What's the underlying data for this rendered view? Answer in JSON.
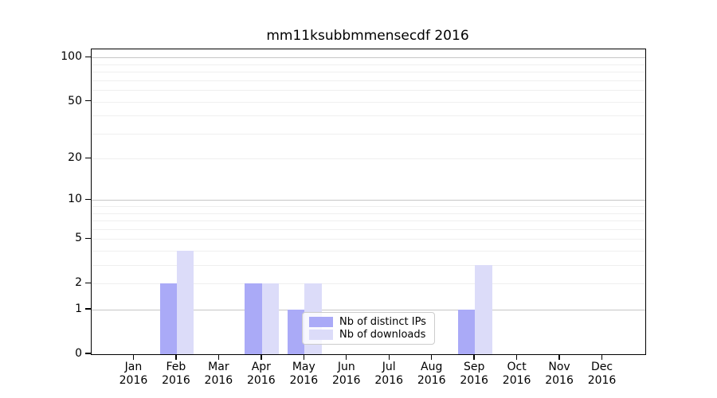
{
  "title": "mm11ksubbmmensecdf 2016",
  "chart_data": {
    "type": "bar",
    "title": "mm11ksubbmmensecdf 2016",
    "yscale": "log10(1+x)",
    "categories": [
      "Jan",
      "Feb",
      "Mar",
      "Apr",
      "May",
      "Jun",
      "Jul",
      "Aug",
      "Sep",
      "Oct",
      "Nov",
      "Dec"
    ],
    "year": "2016",
    "series": [
      {
        "name": "Nb of distinct IPs",
        "color": "#aaaaf7",
        "values": [
          0,
          2,
          0,
          2,
          1,
          0,
          0,
          0,
          1,
          0,
          0,
          0
        ]
      },
      {
        "name": "Nb of downloads",
        "color": "#dcdcf9",
        "values": [
          0,
          4,
          0,
          2,
          2,
          0,
          0,
          0,
          3,
          0,
          0,
          0
        ]
      }
    ],
    "ytick_values": [
      0,
      1,
      2,
      5,
      10,
      20,
      50,
      100
    ],
    "ytick_labels": [
      "0",
      "1",
      "2",
      "5",
      "10",
      "20",
      "50",
      "100"
    ],
    "major_grid_values": [
      1,
      10,
      100
    ],
    "minor_grid_values": [
      2,
      3,
      4,
      5,
      6,
      7,
      8,
      9,
      20,
      30,
      40,
      50,
      60,
      70,
      80,
      90
    ],
    "ylim": [
      0,
      114
    ],
    "grid": "horizontal",
    "legend_position": "lower center",
    "colors": {
      "major_grid": "#c6c6c6",
      "minor_grid": "#efefef",
      "spine": "#000000",
      "background": "#ffffff"
    }
  },
  "legend": {
    "items": [
      {
        "label": "Nb of distinct IPs",
        "color": "#aaaaf7"
      },
      {
        "label": "Nb of downloads",
        "color": "#dcdcf9"
      }
    ]
  }
}
